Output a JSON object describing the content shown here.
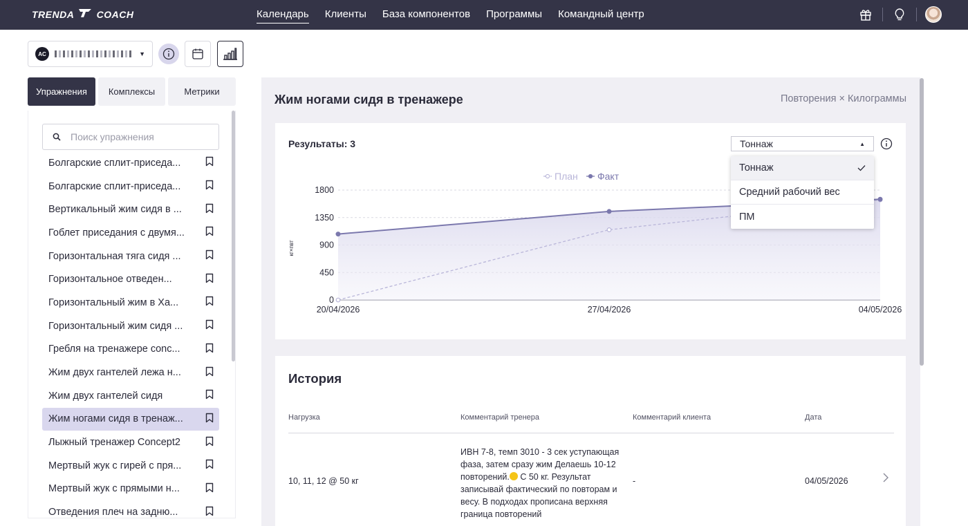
{
  "brand": {
    "logo_left": "TRENDA",
    "logo_right": "COACH"
  },
  "nav": {
    "items": [
      {
        "label": "Календарь",
        "active": true
      },
      {
        "label": "Клиенты",
        "active": false
      },
      {
        "label": "База компонентов",
        "active": false
      },
      {
        "label": "Программы",
        "active": false
      },
      {
        "label": "Командный центр",
        "active": false
      }
    ]
  },
  "topbar_icons": [
    "gift-icon",
    "lightbulb-icon",
    "user-avatar"
  ],
  "client": {
    "initials": "AC",
    "name_masked": true
  },
  "left_tabs": [
    {
      "label": "Упражнения",
      "active": true
    },
    {
      "label": "Комплексы",
      "active": false
    },
    {
      "label": "Метрики",
      "active": false
    }
  ],
  "search": {
    "placeholder": "Поиск упражнения",
    "value": ""
  },
  "exercises": [
    {
      "label": "Болгарские сплит-приседа...",
      "active": false
    },
    {
      "label": "Болгарские сплит-приседа...",
      "active": false
    },
    {
      "label": "Вертикальный жим сидя в ...",
      "active": false
    },
    {
      "label": "Гоблет приседания с двумя...",
      "active": false
    },
    {
      "label": "Горизонтальная тяга сидя ...",
      "active": false
    },
    {
      "label": "Горизонтальное отведен...",
      "active": false
    },
    {
      "label": "Горизонтальный жим в Ха...",
      "active": false
    },
    {
      "label": "Горизонтальный жим сидя ...",
      "active": false
    },
    {
      "label": "Гребля на тренажере conc...",
      "active": false
    },
    {
      "label": "Жим двух гантелей лежа н...",
      "active": false
    },
    {
      "label": "Жим двух гантелей сидя",
      "active": false
    },
    {
      "label": "Жим ногами сидя в тренаж...",
      "active": true
    },
    {
      "label": "Лыжный тренажер Concept2",
      "active": false
    },
    {
      "label": "Мертвый жук с гирей с пря...",
      "active": false
    },
    {
      "label": "Мертвый жук с прямыми н...",
      "active": false
    },
    {
      "label": "Отведения плеч на задню...",
      "active": false
    }
  ],
  "main": {
    "title": "Жим ногами сидя в тренажере",
    "units": "Повторения × Килограммы",
    "results_label": "Результаты: 3",
    "metric_select": {
      "value": "Тоннаж",
      "options": [
        {
          "label": "Тоннаж",
          "selected": true
        },
        {
          "label": "Средний рабочий вес",
          "selected": false
        },
        {
          "label": "ПМ",
          "selected": false
        }
      ]
    }
  },
  "chart_data": {
    "type": "line",
    "x": [
      "20/04/2026",
      "27/04/2026",
      "04/05/2026"
    ],
    "series": [
      {
        "name": "План",
        "values": [
          0,
          1150,
          1640
        ],
        "style": "dashed",
        "color": "#b9b6d9"
      },
      {
        "name": "Факт",
        "values": [
          1080,
          1450,
          1650
        ],
        "style": "solid",
        "color": "#7b78ad"
      }
    ],
    "ylabel": "кг×пвт",
    "yticks": [
      0,
      450,
      900,
      1350,
      1800
    ],
    "ylim": [
      0,
      1800
    ],
    "legend": "top",
    "grid": true
  },
  "history": {
    "title": "История",
    "columns": [
      "Нагрузка",
      "Комментарий тренера",
      "Комментарий клиента",
      "Дата"
    ],
    "rows": [
      {
        "load": "10, 11, 12 @ 50 кг",
        "coach_comment_1": "ИВН 7-8, темп 3010 - 3 сек уступающая",
        "coach_comment_2": "фаза, затем сразу жим Делаешь 10-12",
        "coach_comment_3a": "повторений.",
        "coach_comment_3b": " С 50 кг. Результат",
        "coach_comment_4": "записывай фактический по повторам и",
        "coach_comment_5": "весу. В подходах прописана верхняя",
        "coach_comment_6": "граница повторений",
        "client_comment": "-",
        "date": "04/05/2026"
      }
    ]
  },
  "colors": {
    "topbar": "#343447",
    "accent": "#7b78ad",
    "selected_bg": "#d9d7ee"
  }
}
